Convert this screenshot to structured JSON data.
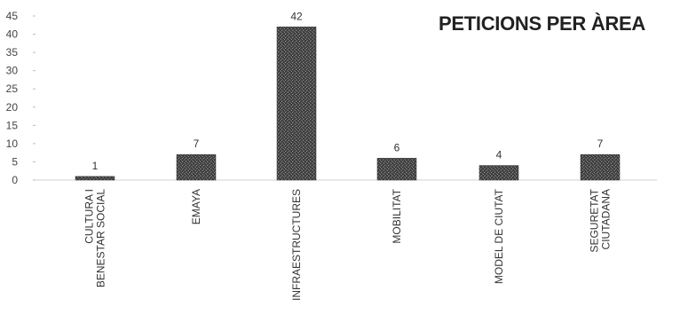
{
  "chart_data": {
    "type": "bar",
    "title": "PETICIONS PER ÀREA",
    "categories": [
      [
        "CULTURA I",
        "BENESTAR SOCIAL"
      ],
      [
        "EMAYA"
      ],
      [
        "INFRAESTRUCTURES"
      ],
      [
        "MOBILITAT"
      ],
      [
        "MODEL DE CIUTAT"
      ],
      [
        "SEGURETAT",
        "CIUTADANA"
      ]
    ],
    "values": [
      1,
      7,
      42,
      6,
      4,
      7
    ],
    "ylim": [
      0,
      45
    ],
    "yticks": [
      0,
      5,
      10,
      15,
      20,
      25,
      30,
      35,
      40,
      45
    ],
    "bar_color": "#4a4a4a",
    "grid": false,
    "legend": "none"
  }
}
